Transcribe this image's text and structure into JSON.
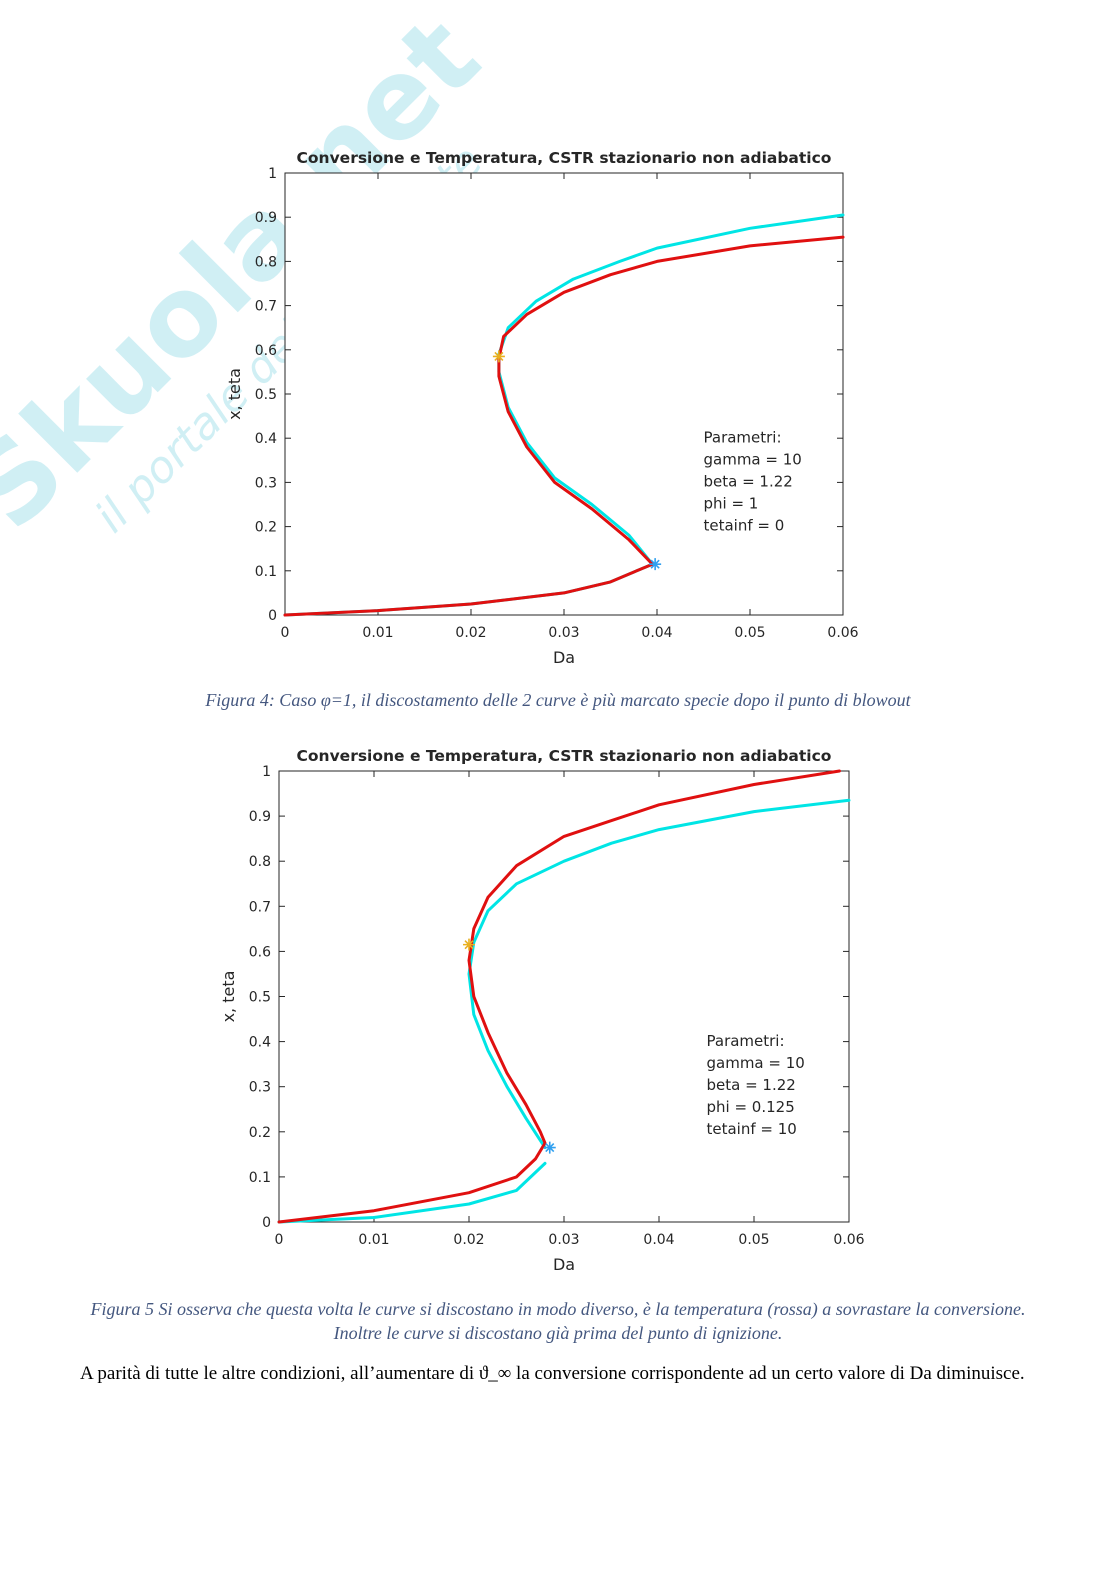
{
  "watermark": {
    "brand": "Skuola.net",
    "tagline": "il portale dello studente"
  },
  "chart_data": [
    {
      "type": "line",
      "title": "Conversione e Temperatura, CSTR stazionario non adiabatico",
      "x_label": "Da",
      "y_label": "x, teta",
      "xlim": [
        0,
        0.06
      ],
      "ylim": [
        0,
        1
      ],
      "xticks": [
        0,
        0.01,
        0.02,
        0.03,
        0.04,
        0.05,
        0.06
      ],
      "yticks": [
        0,
        0.1,
        0.2,
        0.3,
        0.4,
        0.5,
        0.6,
        0.7,
        0.8,
        0.9,
        1
      ],
      "series": [
        {
          "color": "#00e5e5",
          "x": [
            0,
            0.01,
            0.02,
            0.03,
            0.035,
            0.0395,
            0.037,
            0.033,
            0.029,
            0.026,
            0.024,
            0.023,
            0.023,
            0.024,
            0.027,
            0.031,
            0.036,
            0.04,
            0.05,
            0.06
          ],
          "values": [
            0,
            0.01,
            0.025,
            0.05,
            0.075,
            0.115,
            0.18,
            0.25,
            0.31,
            0.39,
            0.47,
            0.55,
            0.59,
            0.65,
            0.71,
            0.76,
            0.8,
            0.83,
            0.875,
            0.905
          ]
        },
        {
          "color": "#e01010",
          "x": [
            0,
            0.01,
            0.02,
            0.03,
            0.035,
            0.0395,
            0.037,
            0.033,
            0.029,
            0.026,
            0.024,
            0.023,
            0.023,
            0.0235,
            0.026,
            0.03,
            0.035,
            0.04,
            0.05,
            0.06
          ],
          "values": [
            0,
            0.01,
            0.025,
            0.05,
            0.075,
            0.115,
            0.17,
            0.24,
            0.3,
            0.38,
            0.46,
            0.54,
            0.58,
            0.63,
            0.68,
            0.73,
            0.77,
            0.8,
            0.835,
            0.855
          ]
        }
      ],
      "markers": [
        {
          "x": 0.023,
          "y": 0.585,
          "color": "#e8b020"
        },
        {
          "x": 0.0398,
          "y": 0.115,
          "color": "#30a0f0"
        }
      ],
      "annotation": [
        "Parametri:",
        "gamma = 10",
        "beta = 1.22",
        "phi = 1",
        "tetainf = 0"
      ],
      "caption": "Figura 4: Caso φ=1, il discostamento delle 2 curve è più marcato specie dopo il punto di blowout"
    },
    {
      "type": "line",
      "title": "Conversione e Temperatura, CSTR stazionario non adiabatico",
      "x_label": "Da",
      "y_label": "x, teta",
      "xlim": [
        0,
        0.06
      ],
      "ylim": [
        0,
        1
      ],
      "xticks": [
        0,
        0.01,
        0.02,
        0.03,
        0.04,
        0.05,
        0.06
      ],
      "yticks": [
        0,
        0.1,
        0.2,
        0.3,
        0.4,
        0.5,
        0.6,
        0.7,
        0.8,
        0.9,
        1
      ],
      "series": [
        {
          "color": "#00e5e5",
          "x": [
            0,
            0.01,
            0.02,
            0.025,
            0.028,
            null,
            0.028,
            0.026,
            0.024,
            0.022,
            0.0205,
            0.02,
            0.0205,
            0.022,
            0.025,
            0.03,
            0.035,
            0.04,
            0.05,
            0.06
          ],
          "values": [
            0,
            0.01,
            0.04,
            0.07,
            0.13,
            null,
            0.165,
            0.23,
            0.3,
            0.38,
            0.46,
            0.55,
            0.62,
            0.69,
            0.75,
            0.8,
            0.84,
            0.87,
            0.91,
            0.935
          ]
        },
        {
          "color": "#e01010",
          "x": [
            0,
            0.01,
            0.02,
            0.025,
            0.027,
            0.028,
            0.0275,
            0.026,
            0.024,
            0.022,
            0.0205,
            0.02,
            0.0205,
            0.022,
            0.025,
            0.03,
            0.035,
            0.04,
            0.05,
            0.059
          ],
          "values": [
            0,
            0.025,
            0.065,
            0.1,
            0.14,
            0.175,
            0.2,
            0.26,
            0.33,
            0.42,
            0.5,
            0.58,
            0.65,
            0.72,
            0.79,
            0.855,
            0.89,
            0.925,
            0.97,
            1
          ]
        }
      ],
      "markers": [
        {
          "x": 0.02,
          "y": 0.615,
          "color": "#e8b020"
        },
        {
          "x": 0.0285,
          "y": 0.165,
          "color": "#30a0f0"
        }
      ],
      "annotation": [
        "Parametri:",
        "gamma = 10",
        "beta = 1.22",
        "phi = 0.125",
        "tetainf = 10"
      ],
      "caption": "Figura 5 Si osserva che questa volta le curve si discostano in modo diverso, è la temperatura (rossa) a sovrastare la conversione. Inoltre le curve si discostano già prima del punto di ignizione."
    }
  ],
  "paragraph": "A parità di tutte le altre condizioni, all’aumentare di ϑ_∞ la conversione corrispondente ad un certo valore di Da diminuisce."
}
